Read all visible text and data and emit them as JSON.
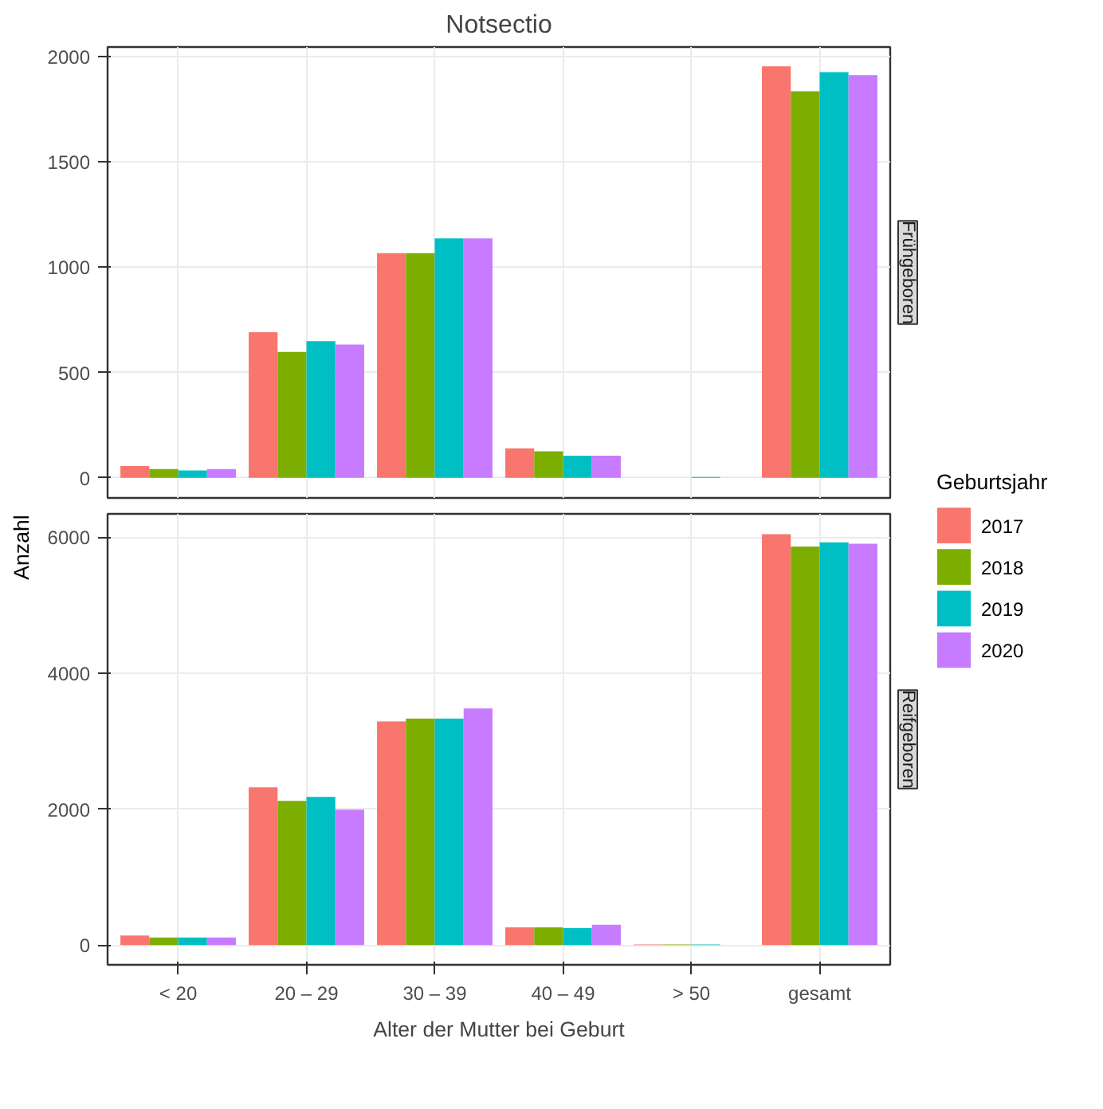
{
  "chart_data": [
    {
      "type": "bar",
      "title": "Notsectio",
      "subtitle": "Frühgeboren",
      "ylabel": "Anzahl",
      "legend_title": "Geburtsjahr",
      "legend": "right",
      "grid": true,
      "tick_labels": "y",
      "ylim": [
        -95,
        2045
      ],
      "yticks": [
        0,
        500,
        1000,
        1500,
        2000
      ],
      "series": [
        {
          "name": "2017",
          "color": "#f8766d",
          "values": [
            56,
            691,
            1067,
            140,
            0,
            1953
          ]
        },
        {
          "name": "2018",
          "color": "#7cae00",
          "values": [
            42,
            598,
            1067,
            126,
            0,
            1835
          ]
        },
        {
          "name": "2019",
          "color": "#00bfc4",
          "values": [
            35,
            649,
            1137,
            105,
            4,
            1926
          ]
        },
        {
          "name": "2020",
          "color": "#c77cff",
          "values": [
            42,
            633,
            1137,
            105,
            0,
            1912
          ]
        }
      ]
    },
    {
      "type": "bar",
      "subtitle": "Reifgeboren",
      "xlabel": "Alter der Mutter bei Geburt",
      "grid": true,
      "categories": [
        "< 20",
        "20 – 29",
        "30 – 39",
        "40 – 49",
        "> 50",
        "gesamt"
      ],
      "ylim": [
        -290,
        6340
      ],
      "yticks": [
        0,
        2000,
        4000,
        6000
      ],
      "series": [
        {
          "color": "#f8766d",
          "values": [
            140,
            2320,
            3290,
            260,
            10,
            6040
          ]
        },
        {
          "color": "#7cae00",
          "values": [
            110,
            2120,
            3330,
            260,
            10,
            5860
          ]
        },
        {
          "color": "#00bfc4",
          "values": [
            110,
            2180,
            3330,
            250,
            10,
            5920
          ]
        },
        {
          "color": "#c77cff",
          "values": [
            110,
            1990,
            3480,
            300,
            0,
            5900
          ]
        }
      ]
    }
  ]
}
